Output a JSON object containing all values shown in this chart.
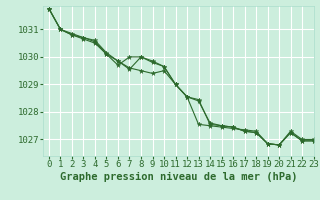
{
  "bg_color": "#cceedd",
  "grid_color": "#aaddcc",
  "line_color": "#2d6a2d",
  "marker_color": "#2d6a2d",
  "title": "Graphe pression niveau de la mer (hPa)",
  "xlim": [
    -0.5,
    23
  ],
  "ylim": [
    1026.4,
    1031.85
  ],
  "yticks": [
    1027,
    1028,
    1029,
    1030,
    1031
  ],
  "xticks": [
    0,
    1,
    2,
    3,
    4,
    5,
    6,
    7,
    8,
    9,
    10,
    11,
    12,
    13,
    14,
    15,
    16,
    17,
    18,
    19,
    20,
    21,
    22,
    23
  ],
  "series": [
    [
      1031.75,
      1031.0,
      1030.8,
      1030.7,
      1030.55,
      1030.1,
      1029.85,
      1029.6,
      1029.5,
      1029.4,
      1029.5,
      1029.0,
      1028.55,
      1027.55,
      1027.5,
      1027.45,
      1027.4,
      1027.35,
      1027.3,
      1026.85,
      1026.8,
      1027.3,
      1027.0,
      1027.0
    ],
    [
      1031.75,
      1031.0,
      1030.8,
      1030.65,
      1030.5,
      1030.1,
      1029.7,
      1030.0,
      1030.0,
      1029.85,
      1029.65,
      1029.0,
      1028.55,
      1028.4,
      1027.6,
      1027.5,
      1027.45,
      1027.3,
      1027.25,
      1026.85,
      1026.8,
      1027.25,
      1026.95,
      1026.95
    ],
    [
      1031.75,
      1031.0,
      1030.85,
      1030.7,
      1030.6,
      1030.15,
      1029.85,
      1029.55,
      1030.0,
      1029.8,
      1029.65,
      1029.0,
      1028.55,
      1028.45,
      1027.55,
      1027.5,
      1027.45,
      1027.3,
      1027.25,
      1026.85,
      1026.8,
      1027.25,
      1026.95,
      1026.95
    ]
  ],
  "title_fontsize": 7.5,
  "tick_fontsize": 6.5
}
